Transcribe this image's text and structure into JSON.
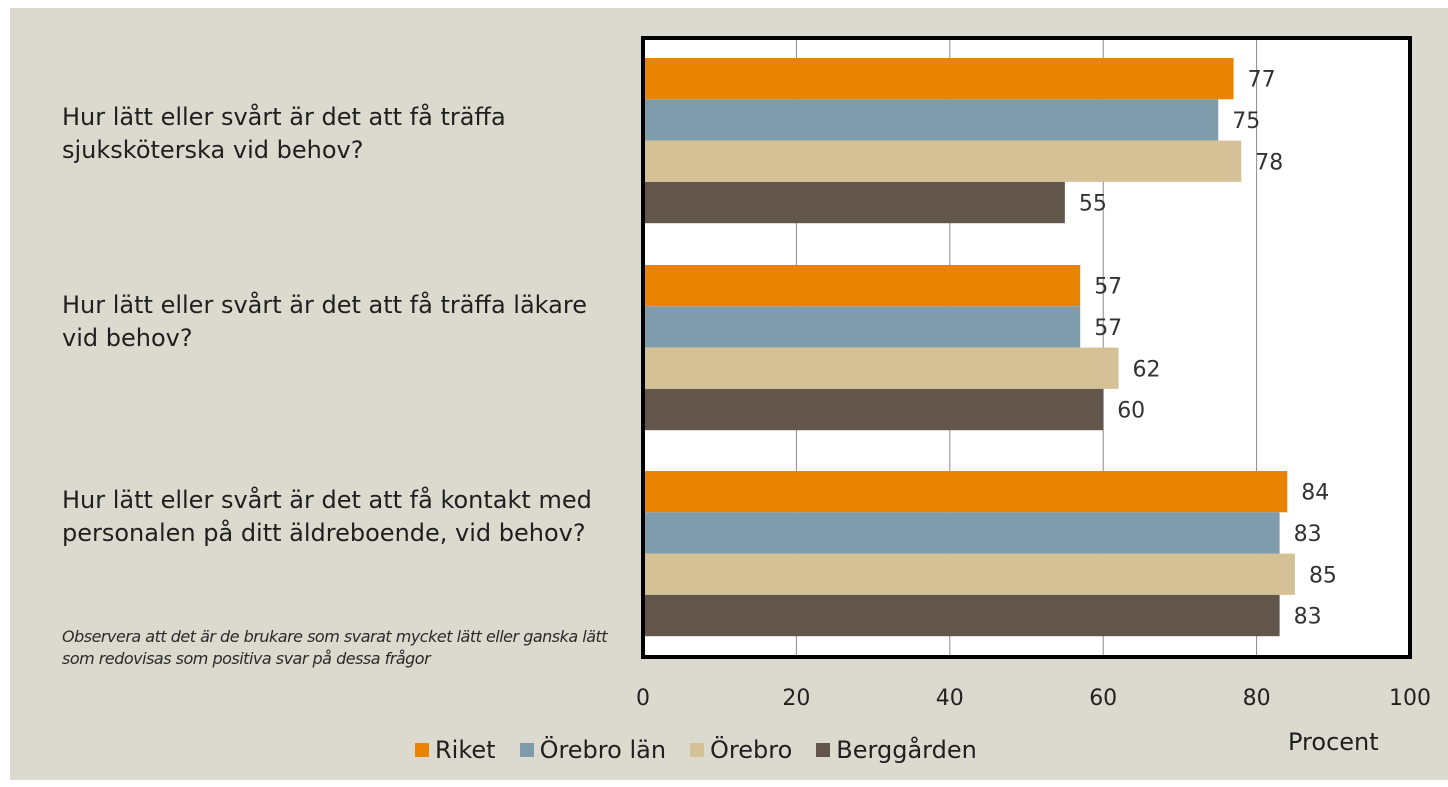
{
  "questions": [
    "Hur lätt eller svårt är det att få träffa sjuksköterska vid behov?",
    "Hur lätt eller svårt är det att få träffa läkare vid behov?",
    "Hur lätt eller svårt är det att få kontakt med personalen på ditt äldreboende, vid behov?"
  ],
  "note": "Observera att det är de brukare som svarat mycket lätt eller ganska lätt som redovisas som positiva svar på dessa frågor",
  "x_unit": "Procent",
  "chart_data": {
    "type": "bar",
    "orientation": "horizontal",
    "categories": [
      "Hur lätt eller svårt är det att få träffa sjuksköterska vid behov?",
      "Hur lätt eller svårt är det att få träffa läkare vid behov?",
      "Hur lätt eller svårt är det att få kontakt med personalen på ditt äldreboende, vid behov?"
    ],
    "series": [
      {
        "name": "Riket",
        "color": "#e98300",
        "values": [
          77,
          57,
          84
        ]
      },
      {
        "name": "Örebro län",
        "color": "#7f9cad",
        "values": [
          75,
          57,
          83
        ]
      },
      {
        "name": "Örebro",
        "color": "#d4c196",
        "values": [
          78,
          62,
          85
        ]
      },
      {
        "name": "Berggården",
        "color": "#62554a",
        "values": [
          55,
          60,
          83
        ]
      }
    ],
    "xlim": [
      0,
      100
    ],
    "xticks": [
      0,
      20,
      40,
      60,
      80,
      100
    ],
    "xlabel": "Procent",
    "grid": "vertical",
    "legend": "bottom",
    "data_labels": true
  }
}
